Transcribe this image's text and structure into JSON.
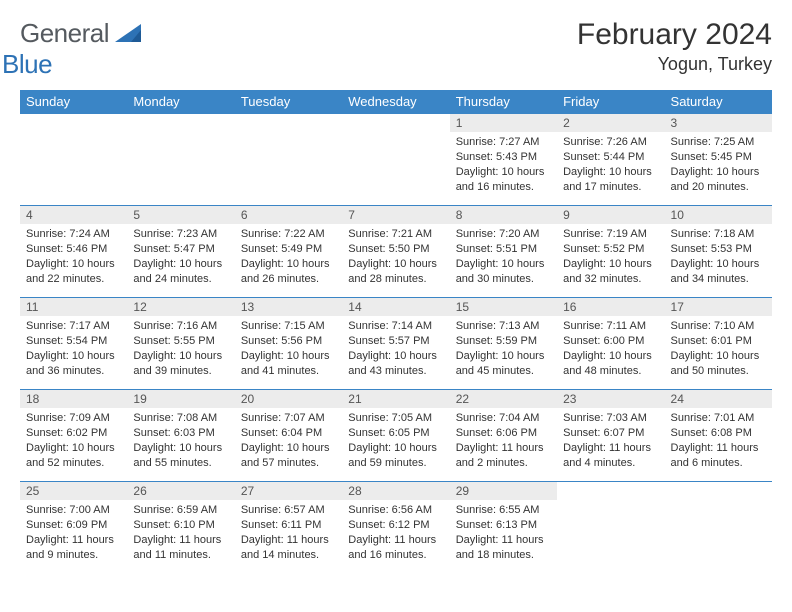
{
  "logo": {
    "general": "General",
    "blue": "Blue"
  },
  "title": "February 2024",
  "location": "Yogun, Turkey",
  "colors": {
    "header_bg": "#3a85c6",
    "header_text": "#ffffff",
    "daynum_bg": "#ececec",
    "border": "#3a85c6",
    "logo_gray": "#555a5f",
    "logo_blue": "#2d72b5"
  },
  "weekdays": [
    "Sunday",
    "Monday",
    "Tuesday",
    "Wednesday",
    "Thursday",
    "Friday",
    "Saturday"
  ],
  "weeks": [
    [
      null,
      null,
      null,
      null,
      {
        "n": "1",
        "sr": "Sunrise: 7:27 AM",
        "ss": "Sunset: 5:43 PM",
        "dl1": "Daylight: 10 hours",
        "dl2": "and 16 minutes."
      },
      {
        "n": "2",
        "sr": "Sunrise: 7:26 AM",
        "ss": "Sunset: 5:44 PM",
        "dl1": "Daylight: 10 hours",
        "dl2": "and 17 minutes."
      },
      {
        "n": "3",
        "sr": "Sunrise: 7:25 AM",
        "ss": "Sunset: 5:45 PM",
        "dl1": "Daylight: 10 hours",
        "dl2": "and 20 minutes."
      }
    ],
    [
      {
        "n": "4",
        "sr": "Sunrise: 7:24 AM",
        "ss": "Sunset: 5:46 PM",
        "dl1": "Daylight: 10 hours",
        "dl2": "and 22 minutes."
      },
      {
        "n": "5",
        "sr": "Sunrise: 7:23 AM",
        "ss": "Sunset: 5:47 PM",
        "dl1": "Daylight: 10 hours",
        "dl2": "and 24 minutes."
      },
      {
        "n": "6",
        "sr": "Sunrise: 7:22 AM",
        "ss": "Sunset: 5:49 PM",
        "dl1": "Daylight: 10 hours",
        "dl2": "and 26 minutes."
      },
      {
        "n": "7",
        "sr": "Sunrise: 7:21 AM",
        "ss": "Sunset: 5:50 PM",
        "dl1": "Daylight: 10 hours",
        "dl2": "and 28 minutes."
      },
      {
        "n": "8",
        "sr": "Sunrise: 7:20 AM",
        "ss": "Sunset: 5:51 PM",
        "dl1": "Daylight: 10 hours",
        "dl2": "and 30 minutes."
      },
      {
        "n": "9",
        "sr": "Sunrise: 7:19 AM",
        "ss": "Sunset: 5:52 PM",
        "dl1": "Daylight: 10 hours",
        "dl2": "and 32 minutes."
      },
      {
        "n": "10",
        "sr": "Sunrise: 7:18 AM",
        "ss": "Sunset: 5:53 PM",
        "dl1": "Daylight: 10 hours",
        "dl2": "and 34 minutes."
      }
    ],
    [
      {
        "n": "11",
        "sr": "Sunrise: 7:17 AM",
        "ss": "Sunset: 5:54 PM",
        "dl1": "Daylight: 10 hours",
        "dl2": "and 36 minutes."
      },
      {
        "n": "12",
        "sr": "Sunrise: 7:16 AM",
        "ss": "Sunset: 5:55 PM",
        "dl1": "Daylight: 10 hours",
        "dl2": "and 39 minutes."
      },
      {
        "n": "13",
        "sr": "Sunrise: 7:15 AM",
        "ss": "Sunset: 5:56 PM",
        "dl1": "Daylight: 10 hours",
        "dl2": "and 41 minutes."
      },
      {
        "n": "14",
        "sr": "Sunrise: 7:14 AM",
        "ss": "Sunset: 5:57 PM",
        "dl1": "Daylight: 10 hours",
        "dl2": "and 43 minutes."
      },
      {
        "n": "15",
        "sr": "Sunrise: 7:13 AM",
        "ss": "Sunset: 5:59 PM",
        "dl1": "Daylight: 10 hours",
        "dl2": "and 45 minutes."
      },
      {
        "n": "16",
        "sr": "Sunrise: 7:11 AM",
        "ss": "Sunset: 6:00 PM",
        "dl1": "Daylight: 10 hours",
        "dl2": "and 48 minutes."
      },
      {
        "n": "17",
        "sr": "Sunrise: 7:10 AM",
        "ss": "Sunset: 6:01 PM",
        "dl1": "Daylight: 10 hours",
        "dl2": "and 50 minutes."
      }
    ],
    [
      {
        "n": "18",
        "sr": "Sunrise: 7:09 AM",
        "ss": "Sunset: 6:02 PM",
        "dl1": "Daylight: 10 hours",
        "dl2": "and 52 minutes."
      },
      {
        "n": "19",
        "sr": "Sunrise: 7:08 AM",
        "ss": "Sunset: 6:03 PM",
        "dl1": "Daylight: 10 hours",
        "dl2": "and 55 minutes."
      },
      {
        "n": "20",
        "sr": "Sunrise: 7:07 AM",
        "ss": "Sunset: 6:04 PM",
        "dl1": "Daylight: 10 hours",
        "dl2": "and 57 minutes."
      },
      {
        "n": "21",
        "sr": "Sunrise: 7:05 AM",
        "ss": "Sunset: 6:05 PM",
        "dl1": "Daylight: 10 hours",
        "dl2": "and 59 minutes."
      },
      {
        "n": "22",
        "sr": "Sunrise: 7:04 AM",
        "ss": "Sunset: 6:06 PM",
        "dl1": "Daylight: 11 hours",
        "dl2": "and 2 minutes."
      },
      {
        "n": "23",
        "sr": "Sunrise: 7:03 AM",
        "ss": "Sunset: 6:07 PM",
        "dl1": "Daylight: 11 hours",
        "dl2": "and 4 minutes."
      },
      {
        "n": "24",
        "sr": "Sunrise: 7:01 AM",
        "ss": "Sunset: 6:08 PM",
        "dl1": "Daylight: 11 hours",
        "dl2": "and 6 minutes."
      }
    ],
    [
      {
        "n": "25",
        "sr": "Sunrise: 7:00 AM",
        "ss": "Sunset: 6:09 PM",
        "dl1": "Daylight: 11 hours",
        "dl2": "and 9 minutes."
      },
      {
        "n": "26",
        "sr": "Sunrise: 6:59 AM",
        "ss": "Sunset: 6:10 PM",
        "dl1": "Daylight: 11 hours",
        "dl2": "and 11 minutes."
      },
      {
        "n": "27",
        "sr": "Sunrise: 6:57 AM",
        "ss": "Sunset: 6:11 PM",
        "dl1": "Daylight: 11 hours",
        "dl2": "and 14 minutes."
      },
      {
        "n": "28",
        "sr": "Sunrise: 6:56 AM",
        "ss": "Sunset: 6:12 PM",
        "dl1": "Daylight: 11 hours",
        "dl2": "and 16 minutes."
      },
      {
        "n": "29",
        "sr": "Sunrise: 6:55 AM",
        "ss": "Sunset: 6:13 PM",
        "dl1": "Daylight: 11 hours",
        "dl2": "and 18 minutes."
      },
      null,
      null
    ]
  ]
}
